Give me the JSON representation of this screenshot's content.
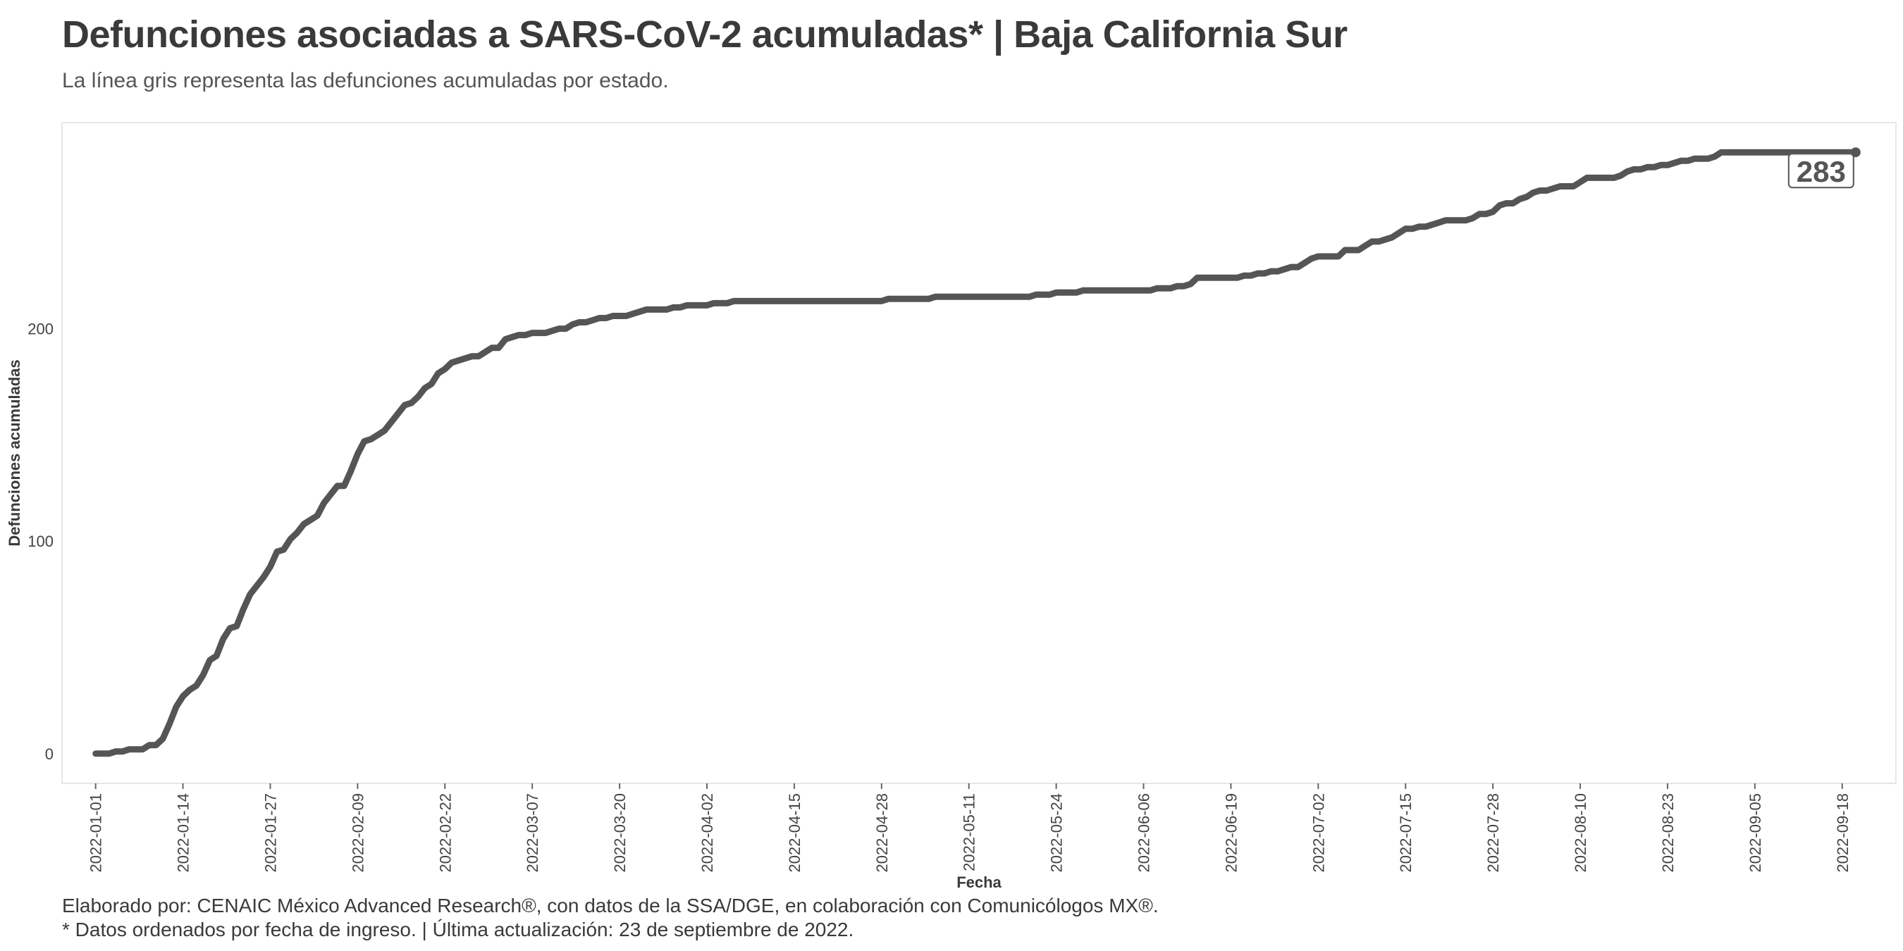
{
  "title": "Defunciones asociadas a SARS-CoV-2 acumuladas* | Baja California Sur",
  "subtitle": "La línea gris representa las defunciones acumuladas por estado.",
  "caption_lines": [
    "Elaborado por: CENAIC México Advanced Research®, con datos de la SSA/DGE, en colaboración con Comunicólogos MX®.",
    "* Datos ordenados por fecha de ingreso. | Última actualización: 23 de septiembre de 2022."
  ],
  "colors": {
    "line": "#555555",
    "text": "#3a3a3a",
    "panel_border": "#e6e6e6"
  },
  "chart_data": {
    "type": "line",
    "xlabel": "Fecha",
    "ylabel": "Defunciones acumuladas",
    "x_range": [
      "2021-12-27",
      "2022-09-26"
    ],
    "ylim": [
      -14,
      297
    ],
    "x_ticks": [
      "2022-01-01",
      "2022-01-14",
      "2022-01-27",
      "2022-02-09",
      "2022-02-22",
      "2022-03-07",
      "2022-03-20",
      "2022-04-02",
      "2022-04-15",
      "2022-04-28",
      "2022-05-11",
      "2022-05-24",
      "2022-06-06",
      "2022-06-19",
      "2022-07-02",
      "2022-07-15",
      "2022-07-28",
      "2022-08-10",
      "2022-08-23",
      "2022-09-05",
      "2022-09-18"
    ],
    "y_ticks": [
      0,
      100,
      200
    ],
    "grid": false,
    "legend": "none",
    "end_label": "283",
    "points": [
      [
        "2022-01-01",
        0
      ],
      [
        "2022-01-03",
        0
      ],
      [
        "2022-01-04",
        1
      ],
      [
        "2022-01-05",
        1
      ],
      [
        "2022-01-06",
        2
      ],
      [
        "2022-01-08",
        2
      ],
      [
        "2022-01-09",
        4
      ],
      [
        "2022-01-10",
        4
      ],
      [
        "2022-01-11",
        7
      ],
      [
        "2022-01-12",
        14
      ],
      [
        "2022-01-13",
        22
      ],
      [
        "2022-01-14",
        27
      ],
      [
        "2022-01-15",
        30
      ],
      [
        "2022-01-16",
        32
      ],
      [
        "2022-01-17",
        37
      ],
      [
        "2022-01-18",
        44
      ],
      [
        "2022-01-19",
        46
      ],
      [
        "2022-01-20",
        54
      ],
      [
        "2022-01-21",
        59
      ],
      [
        "2022-01-22",
        60
      ],
      [
        "2022-01-23",
        68
      ],
      [
        "2022-01-24",
        75
      ],
      [
        "2022-01-25",
        79
      ],
      [
        "2022-01-26",
        83
      ],
      [
        "2022-01-27",
        88
      ],
      [
        "2022-01-28",
        95
      ],
      [
        "2022-01-29",
        96
      ],
      [
        "2022-01-30",
        101
      ],
      [
        "2022-01-31",
        104
      ],
      [
        "2022-02-01",
        108
      ],
      [
        "2022-02-02",
        110
      ],
      [
        "2022-02-03",
        112
      ],
      [
        "2022-02-04",
        118
      ],
      [
        "2022-02-05",
        122
      ],
      [
        "2022-02-06",
        126
      ],
      [
        "2022-02-07",
        126
      ],
      [
        "2022-02-08",
        133
      ],
      [
        "2022-02-09",
        141
      ],
      [
        "2022-02-10",
        147
      ],
      [
        "2022-02-11",
        148
      ],
      [
        "2022-02-12",
        150
      ],
      [
        "2022-02-13",
        152
      ],
      [
        "2022-02-14",
        156
      ],
      [
        "2022-02-15",
        160
      ],
      [
        "2022-02-16",
        164
      ],
      [
        "2022-02-17",
        165
      ],
      [
        "2022-02-18",
        168
      ],
      [
        "2022-02-19",
        172
      ],
      [
        "2022-02-20",
        174
      ],
      [
        "2022-02-21",
        179
      ],
      [
        "2022-02-22",
        181
      ],
      [
        "2022-02-23",
        184
      ],
      [
        "2022-02-24",
        185
      ],
      [
        "2022-02-25",
        186
      ],
      [
        "2022-02-26",
        187
      ],
      [
        "2022-02-27",
        187
      ],
      [
        "2022-02-28",
        189
      ],
      [
        "2022-03-01",
        191
      ],
      [
        "2022-03-02",
        191
      ],
      [
        "2022-03-03",
        195
      ],
      [
        "2022-03-04",
        196
      ],
      [
        "2022-03-05",
        197
      ],
      [
        "2022-03-06",
        197
      ],
      [
        "2022-03-07",
        198
      ],
      [
        "2022-03-09",
        198
      ],
      [
        "2022-03-10",
        199
      ],
      [
        "2022-03-11",
        200
      ],
      [
        "2022-03-12",
        200
      ],
      [
        "2022-03-13",
        202
      ],
      [
        "2022-03-14",
        203
      ],
      [
        "2022-03-15",
        203
      ],
      [
        "2022-03-16",
        204
      ],
      [
        "2022-03-17",
        205
      ],
      [
        "2022-03-18",
        205
      ],
      [
        "2022-03-19",
        206
      ],
      [
        "2022-03-21",
        206
      ],
      [
        "2022-03-22",
        207
      ],
      [
        "2022-03-23",
        208
      ],
      [
        "2022-03-24",
        209
      ],
      [
        "2022-03-27",
        209
      ],
      [
        "2022-03-28",
        210
      ],
      [
        "2022-03-29",
        210
      ],
      [
        "2022-03-30",
        211
      ],
      [
        "2022-04-02",
        211
      ],
      [
        "2022-04-03",
        212
      ],
      [
        "2022-04-05",
        212
      ],
      [
        "2022-04-06",
        213
      ],
      [
        "2022-04-28",
        213
      ],
      [
        "2022-04-29",
        214
      ],
      [
        "2022-05-05",
        214
      ],
      [
        "2022-05-06",
        215
      ],
      [
        "2022-05-20",
        215
      ],
      [
        "2022-05-21",
        216
      ],
      [
        "2022-05-23",
        216
      ],
      [
        "2022-05-24",
        217
      ],
      [
        "2022-05-27",
        217
      ],
      [
        "2022-05-28",
        218
      ],
      [
        "2022-06-07",
        218
      ],
      [
        "2022-06-08",
        219
      ],
      [
        "2022-06-10",
        219
      ],
      [
        "2022-06-11",
        220
      ],
      [
        "2022-06-12",
        220
      ],
      [
        "2022-06-13",
        221
      ],
      [
        "2022-06-14",
        224
      ],
      [
        "2022-06-20",
        224
      ],
      [
        "2022-06-21",
        225
      ],
      [
        "2022-06-22",
        225
      ],
      [
        "2022-06-23",
        226
      ],
      [
        "2022-06-24",
        226
      ],
      [
        "2022-06-25",
        227
      ],
      [
        "2022-06-26",
        227
      ],
      [
        "2022-06-27",
        228
      ],
      [
        "2022-06-28",
        229
      ],
      [
        "2022-06-29",
        229
      ],
      [
        "2022-06-30",
        231
      ],
      [
        "2022-07-01",
        233
      ],
      [
        "2022-07-02",
        234
      ],
      [
        "2022-07-05",
        234
      ],
      [
        "2022-07-06",
        237
      ],
      [
        "2022-07-08",
        237
      ],
      [
        "2022-07-09",
        239
      ],
      [
        "2022-07-10",
        241
      ],
      [
        "2022-07-11",
        241
      ],
      [
        "2022-07-12",
        242
      ],
      [
        "2022-07-13",
        243
      ],
      [
        "2022-07-14",
        245
      ],
      [
        "2022-07-15",
        247
      ],
      [
        "2022-07-16",
        247
      ],
      [
        "2022-07-17",
        248
      ],
      [
        "2022-07-18",
        248
      ],
      [
        "2022-07-19",
        249
      ],
      [
        "2022-07-20",
        250
      ],
      [
        "2022-07-21",
        251
      ],
      [
        "2022-07-24",
        251
      ],
      [
        "2022-07-25",
        252
      ],
      [
        "2022-07-26",
        254
      ],
      [
        "2022-07-27",
        254
      ],
      [
        "2022-07-28",
        255
      ],
      [
        "2022-07-29",
        258
      ],
      [
        "2022-07-30",
        259
      ],
      [
        "2022-07-31",
        259
      ],
      [
        "2022-08-01",
        261
      ],
      [
        "2022-08-02",
        262
      ],
      [
        "2022-08-03",
        264
      ],
      [
        "2022-08-04",
        265
      ],
      [
        "2022-08-05",
        265
      ],
      [
        "2022-08-06",
        266
      ],
      [
        "2022-08-07",
        267
      ],
      [
        "2022-08-09",
        267
      ],
      [
        "2022-08-10",
        269
      ],
      [
        "2022-08-11",
        271
      ],
      [
        "2022-08-15",
        271
      ],
      [
        "2022-08-16",
        272
      ],
      [
        "2022-08-17",
        274
      ],
      [
        "2022-08-18",
        275
      ],
      [
        "2022-08-19",
        275
      ],
      [
        "2022-08-20",
        276
      ],
      [
        "2022-08-21",
        276
      ],
      [
        "2022-08-22",
        277
      ],
      [
        "2022-08-23",
        277
      ],
      [
        "2022-08-24",
        278
      ],
      [
        "2022-08-25",
        279
      ],
      [
        "2022-08-26",
        279
      ],
      [
        "2022-08-27",
        280
      ],
      [
        "2022-08-29",
        280
      ],
      [
        "2022-08-30",
        281
      ],
      [
        "2022-08-31",
        283
      ],
      [
        "2022-09-20",
        283
      ]
    ]
  }
}
